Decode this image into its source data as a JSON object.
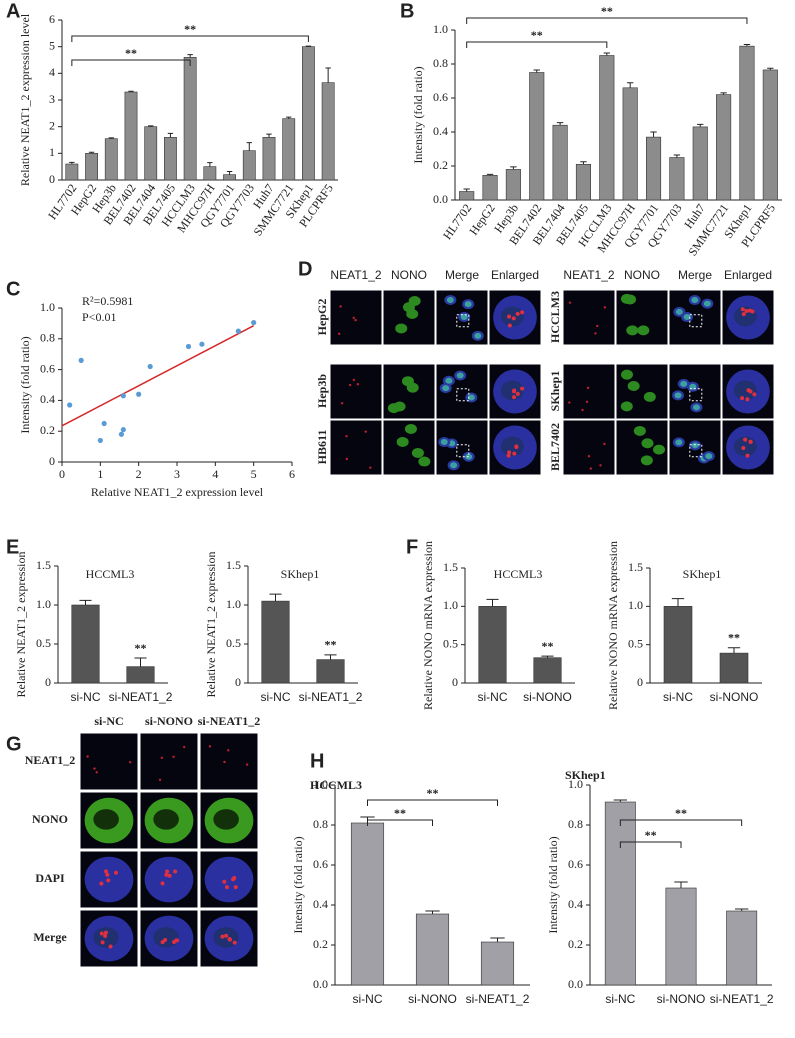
{
  "chart_data": [
    {
      "type": "bar",
      "panel": "A",
      "ylabel": "Relative NEAT1_2 expression level",
      "categories": [
        "HL7702",
        "HepG2",
        "Hep3b",
        "BEL7402",
        "BEL7404",
        "BEL7405",
        "HCCLM3",
        "MHCC97H",
        "QGY7701",
        "QGY7703",
        "Huh7",
        "SMMC7721",
        "SKhep1",
        "PLCPRF5"
      ],
      "values": [
        0.6,
        1.0,
        1.55,
        3.3,
        2.0,
        1.6,
        4.6,
        0.5,
        0.2,
        1.1,
        1.6,
        2.3,
        5.0,
        3.65
      ],
      "errors": [
        0.06,
        0.04,
        0.03,
        0.03,
        0.03,
        0.15,
        0.1,
        0.15,
        0.12,
        0.3,
        0.12,
        0.06,
        0.02,
        0.55
      ],
      "color": "#8c8c8c",
      "ylim": [
        0,
        6
      ],
      "yticks": [
        0,
        1,
        2,
        3,
        4,
        5,
        6
      ],
      "brackets": [
        {
          "from": "HL7702",
          "to": "HCCLM3",
          "label": "**"
        },
        {
          "from": "HL7702",
          "to": "SKhep1",
          "label": "**"
        }
      ]
    },
    {
      "type": "bar",
      "panel": "B",
      "ylabel": "Intensity (fold ratio)",
      "categories": [
        "HL7702",
        "HepG2",
        "Hep3b",
        "BEL7402",
        "BEL7404",
        "BEL7405",
        "HCCLM3",
        "MHCC97H",
        "QGY7701",
        "QGY7703",
        "Huh7",
        "SMMC7721",
        "SKhep1",
        "PLCPRF5"
      ],
      "values": [
        0.05,
        0.145,
        0.18,
        0.75,
        0.44,
        0.21,
        0.85,
        0.66,
        0.37,
        0.25,
        0.43,
        0.62,
        0.905,
        0.765
      ],
      "errors": [
        0.015,
        0.006,
        0.015,
        0.015,
        0.015,
        0.015,
        0.015,
        0.03,
        0.03,
        0.015,
        0.015,
        0.01,
        0.01,
        0.01
      ],
      "color": "#8c8c8c",
      "ylim": [
        0,
        1
      ],
      "yticks": [
        {
          "value": 0,
          "label": "0.0"
        },
        0.2,
        0.4,
        0.6,
        0.8,
        {
          "value": 1,
          "label": "1.0"
        }
      ],
      "brackets": [
        {
          "from": "HL7702",
          "to": "HCCLM3",
          "label": "**"
        },
        {
          "from": "HL7702",
          "to": "SKhep1",
          "label": "**"
        }
      ]
    },
    {
      "type": "scatter",
      "panel": "C",
      "xlabel": "Relative NEAT1_2 expression level",
      "ylabel": "Intensity (fold ratio)",
      "x": [
        0.2,
        0.5,
        1.0,
        1.1,
        1.55,
        1.6,
        1.6,
        2.0,
        2.3,
        3.3,
        3.65,
        4.6,
        5.0
      ],
      "y": [
        0.37,
        0.66,
        0.14,
        0.25,
        0.18,
        0.21,
        0.43,
        0.44,
        0.62,
        0.75,
        0.765,
        0.85,
        0.905
      ],
      "color": "#5b9bd5",
      "fit_line": {
        "x": [
          0,
          5
        ],
        "y": [
          0.235,
          0.885
        ],
        "color": "#d62728"
      },
      "annotations": [
        "R²=0.5981",
        "P<0.01"
      ],
      "xlim": [
        0,
        6
      ],
      "xticks": [
        0,
        1,
        2,
        3,
        4,
        5,
        6
      ],
      "ylim": [
        0,
        1
      ],
      "yticks": [
        0,
        0.2,
        0.4,
        0.6,
        0.8,
        {
          "value": 1,
          "label": "1.0"
        }
      ]
    },
    {
      "type": "bar",
      "panel": "E",
      "title": "HCCML3",
      "ylabel": "Relative NEAT1_2 expression",
      "categories": [
        "si-NC",
        "si-NEAT1_2"
      ],
      "values": [
        1.0,
        0.21
      ],
      "errors": [
        0.06,
        0.11
      ],
      "color": "#555555",
      "ylim": [
        0,
        1.5
      ],
      "yticks": [
        0,
        0.5,
        {
          "value": 1,
          "label": "1.0"
        },
        1.5
      ],
      "marks": [
        {
          "at": "si-NEAT1_2",
          "label": "**"
        }
      ]
    },
    {
      "type": "bar",
      "title": "SKhep1",
      "ylabel": "Relative NEAT1_2 expression",
      "categories": [
        "si-NC",
        "si-NEAT1_2"
      ],
      "values": [
        1.05,
        0.3
      ],
      "errors": [
        0.09,
        0.06
      ],
      "color": "#555555",
      "ylim": [
        0,
        1.5
      ],
      "yticks": [
        0,
        0.5,
        {
          "value": 1,
          "label": "1.0"
        },
        1.5
      ],
      "marks": [
        {
          "at": "si-NEAT1_2",
          "label": "**"
        }
      ]
    },
    {
      "type": "bar",
      "panel": "F",
      "title": "HCCML3",
      "ylabel": "Relative NONO mRNA expression",
      "categories": [
        "si-NC",
        "si-NONO"
      ],
      "values": [
        1.0,
        0.33
      ],
      "errors": [
        0.09,
        0.02
      ],
      "color": "#555555",
      "ylim": [
        0,
        1.5
      ],
      "yticks": [
        0,
        0.5,
        {
          "value": 1,
          "label": "1.0"
        },
        1.5
      ],
      "marks": [
        {
          "at": "si-NONO",
          "label": "**"
        }
      ]
    },
    {
      "type": "bar",
      "title": "SKhep1",
      "ylabel": "Relative NONO mRNA expression",
      "categories": [
        "si-NC",
        "si-NONO"
      ],
      "values": [
        1.0,
        0.39
      ],
      "errors": [
        0.1,
        0.07
      ],
      "color": "#555555",
      "ylim": [
        0,
        1.5
      ],
      "yticks": [
        0,
        0.5,
        {
          "value": 1,
          "label": "1.0"
        },
        1.5
      ],
      "marks": [
        {
          "at": "si-NONO",
          "label": "**"
        }
      ]
    },
    {
      "type": "bar",
      "panel": "H",
      "title": "HCCML3",
      "ylabel": "Intensity (fold ratio)",
      "categories": [
        "si-NC",
        "si-NONO",
        "si-NEAT1_2"
      ],
      "values": [
        0.81,
        0.355,
        0.215
      ],
      "errors": [
        0.03,
        0.015,
        0.02
      ],
      "color": "#a0a0a6",
      "ylim": [
        0,
        1
      ],
      "yticks": [
        {
          "value": 0,
          "label": "0.0"
        },
        0.2,
        0.4,
        0.6,
        0.8,
        {
          "value": 1,
          "label": "1.0"
        }
      ],
      "brackets": [
        {
          "from": "si-NC",
          "to": "si-NONO",
          "label": "**"
        },
        {
          "from": "si-NC",
          "to": "si-NEAT1_2",
          "label": "**"
        }
      ]
    },
    {
      "type": "bar",
      "title": "SKhep1",
      "ylabel": "Intensity (fold ratio)",
      "categories": [
        "si-NC",
        "si-NONO",
        "si-NEAT1_2"
      ],
      "values": [
        0.915,
        0.485,
        0.37
      ],
      "errors": [
        0.01,
        0.03,
        0.01
      ],
      "color": "#a0a0a6",
      "ylim": [
        0,
        1
      ],
      "yticks": [
        {
          "value": 0,
          "label": "0.0"
        },
        0.2,
        0.4,
        0.6,
        0.8,
        {
          "value": 1,
          "label": "1.0"
        }
      ],
      "brackets": [
        {
          "from": "si-NC",
          "to": "si-NONO",
          "label": "**"
        },
        {
          "from": "si-NC",
          "to": "si-NEAT1_2",
          "label": "**"
        }
      ]
    }
  ],
  "panel_d": {
    "label": "D",
    "groups": [
      {
        "columns": [
          "NEAT1_2",
          "NONO",
          "Merge",
          "Enlarged"
        ],
        "rows": [
          "HepG2",
          "Hep3b",
          "HB611"
        ]
      },
      {
        "columns": [
          "NEAT1_2",
          "NONO",
          "Merge",
          "Enlarged"
        ],
        "rows": [
          "HCCLM3",
          "SKhep1",
          "BEL7402"
        ]
      }
    ]
  },
  "panel_g": {
    "label": "G",
    "columns": [
      "si-NC",
      "si-NONO",
      "si-NEAT1_2"
    ],
    "rows": [
      "NEAT1_2",
      "NONO",
      "DAPI",
      "Merge"
    ]
  }
}
